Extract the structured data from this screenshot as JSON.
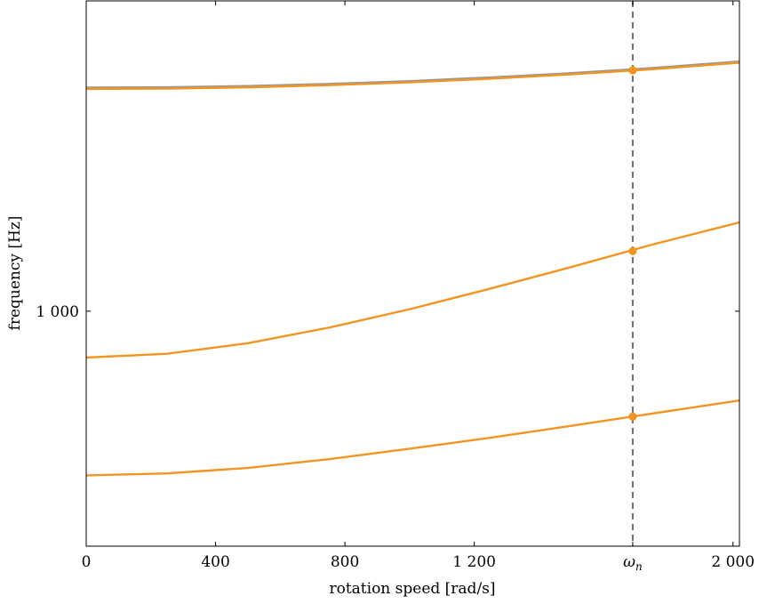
{
  "chart_data": {
    "type": "line",
    "xlabel": "rotation speed [rad/s]",
    "ylabel": "frequency [Hz]",
    "xlim": [
      0,
      2020
    ],
    "ylim": [
      620,
      1880
    ],
    "x_ticks": [
      {
        "value": 0,
        "label": "0"
      },
      {
        "value": 400,
        "label": "400"
      },
      {
        "value": 800,
        "label": "800"
      },
      {
        "value": 1200,
        "label": "1 200"
      },
      {
        "value": 1690,
        "label": "ω_n"
      },
      {
        "value": 2000,
        "label": "2 000"
      }
    ],
    "y_ticks": [
      {
        "value": 1000,
        "label": "1 000"
      }
    ],
    "grid": false,
    "reference_line": {
      "x": 1690,
      "style": "dashed",
      "color": "#6f6f6f"
    },
    "colors": {
      "series": "#f29420",
      "reference": "#9a9a9a",
      "marker": "#f29420"
    },
    "series": [
      {
        "x": [
          0,
          250,
          500,
          750,
          1000,
          1250,
          1500,
          1750,
          2020
        ],
        "y": [
          1576,
          1577,
          1581,
          1588,
          1597,
          1609,
          1623,
          1640,
          1662
        ],
        "color": "#9a9a9a"
      },
      {
        "x": [
          0,
          250,
          500,
          750,
          1000,
          1250,
          1500,
          1750,
          2020
        ],
        "y": [
          1572,
          1573,
          1577,
          1584,
          1593,
          1605,
          1619,
          1636,
          1658
        ],
        "color": "#f29420"
      },
      {
        "x": [
          0,
          250,
          500,
          750,
          1000,
          1250,
          1500,
          1750,
          2020
        ],
        "y": [
          910,
          917,
          937,
          967,
          1004,
          1047,
          1094,
          1145,
          1198
        ],
        "color": "#f29420"
      },
      {
        "x": [
          0,
          250,
          500,
          750,
          1000,
          1250,
          1500,
          1750,
          2020
        ],
        "y": [
          716,
          719,
          727,
          740,
          756,
          773,
          792,
          812,
          834
        ],
        "color": "#f29420"
      }
    ],
    "markers": [
      {
        "x": 1690,
        "y": 1632
      },
      {
        "x": 1690,
        "y": 1130
      },
      {
        "x": 1690,
        "y": 807
      }
    ]
  }
}
